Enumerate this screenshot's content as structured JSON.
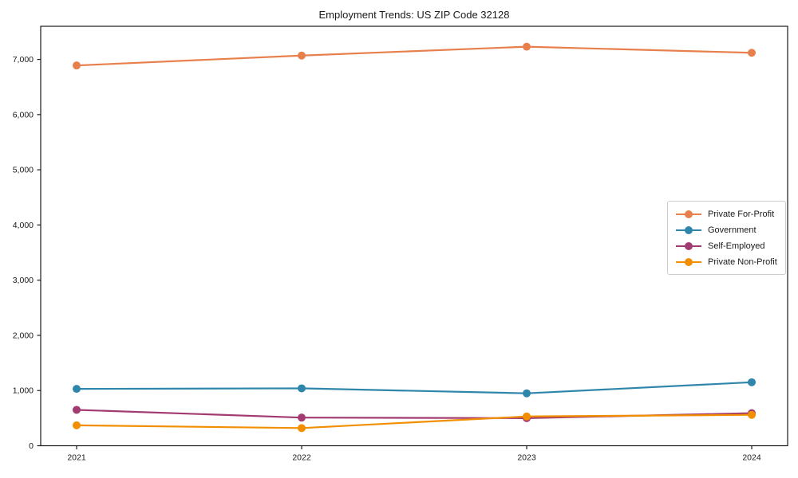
{
  "title": "Employment Trends: US ZIP Code 32128",
  "chart_data": {
    "type": "line",
    "title": "Employment Trends: US ZIP Code 32128",
    "x_labels": [
      "2021",
      "2022",
      "2023",
      "2024"
    ],
    "series": [
      {
        "name": "Private For-Profit",
        "color": "#E8804D",
        "values": [
          6890,
          7070,
          7230,
          7120
        ]
      },
      {
        "name": "Government",
        "color": "#2E86AB",
        "values": [
          1030,
          1040,
          950,
          1150
        ]
      },
      {
        "name": "Self-Employed",
        "color": "#A23B72",
        "values": [
          650,
          510,
          500,
          590
        ]
      },
      {
        "name": "Private Non-Profit",
        "color": "#F18F01",
        "values": [
          370,
          320,
          530,
          560
        ]
      }
    ],
    "xlabel": "",
    "ylabel": "",
    "ylim": [
      0,
      7600
    ],
    "yticks": [
      0,
      1000,
      2000,
      3000,
      4000,
      5000,
      6000,
      7000
    ],
    "ytick_labels": [
      "0",
      "1,000",
      "2,000",
      "3,000",
      "4,000",
      "5,000",
      "6,000",
      "7,000"
    ],
    "grid": false,
    "legend_position": "center-right",
    "axis_color": "#1a1a1a",
    "marker_radius": 5,
    "line_width": 2.2
  }
}
